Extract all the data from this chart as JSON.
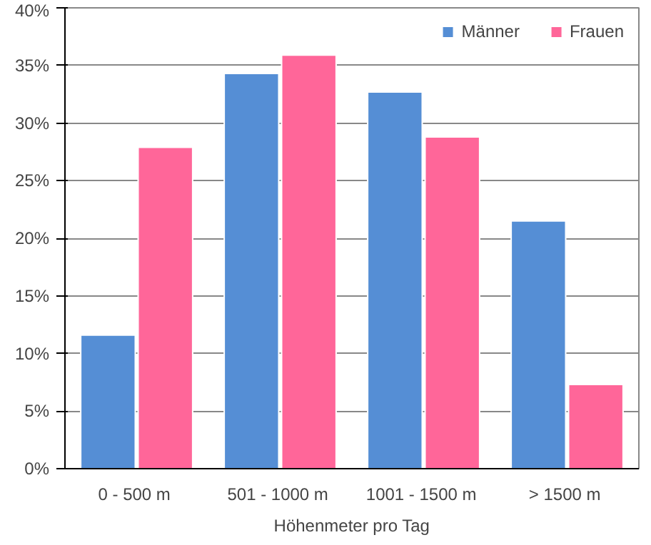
{
  "chart_data": {
    "type": "bar",
    "xlabel": "Höhenmeter pro Tag",
    "categories": [
      "0 - 500  m",
      "501 - 1000  m",
      "1001 - 1500  m",
      "> 1500  m"
    ],
    "series": [
      {
        "name": "Männer",
        "color": "#558ed5",
        "values": [
          11.6,
          34.3,
          32.7,
          21.5
        ]
      },
      {
        "name": "Frauen",
        "color": "#ff6699",
        "values": [
          27.9,
          35.9,
          28.8,
          7.3
        ]
      }
    ],
    "ylim": [
      0,
      40
    ],
    "yticks": [
      {
        "value": 0,
        "label": "0%"
      },
      {
        "value": 5,
        "label": "5%"
      },
      {
        "value": 10,
        "label": "10%"
      },
      {
        "value": 15,
        "label": "15%"
      },
      {
        "value": 20,
        "label": "20%"
      },
      {
        "value": 25,
        "label": "25%"
      },
      {
        "value": 30,
        "label": "30%"
      },
      {
        "value": 35,
        "label": "35%"
      },
      {
        "value": 40,
        "label": "40%"
      }
    ],
    "grid": "y",
    "legend": "top right"
  }
}
